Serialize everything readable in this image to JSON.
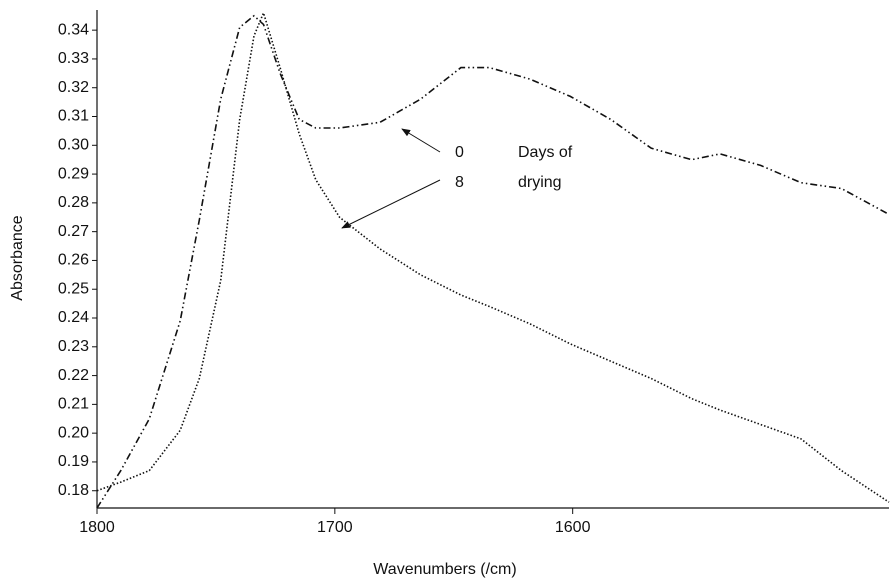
{
  "chart_data": {
    "type": "line",
    "xlabel": "Wavenumbers (/cm)",
    "ylabel": "Absorbance",
    "x": [
      1800,
      1790,
      1778,
      1765,
      1757,
      1748,
      1740,
      1734,
      1730,
      1723,
      1715,
      1708,
      1698,
      1681,
      1664,
      1647,
      1635,
      1618,
      1601,
      1584,
      1567,
      1550,
      1538,
      1521,
      1504,
      1487,
      1467
    ],
    "series": [
      {
        "color": "#111111",
        "linestyle": "dashdot",
        "values": [
          0.174,
          0.187,
          0.205,
          0.239,
          0.274,
          0.316,
          0.341,
          0.345,
          0.342,
          0.325,
          0.309,
          0.306,
          0.306,
          0.308,
          0.316,
          0.327,
          0.327,
          0.323,
          0.317,
          0.309,
          0.299,
          0.295,
          0.297,
          0.293,
          0.287,
          0.285,
          0.276
        ]
      },
      {
        "color": "#111111",
        "linestyle": "dotted",
        "values": [
          0.18,
          0.183,
          0.187,
          0.201,
          0.219,
          0.253,
          0.309,
          0.338,
          0.346,
          0.327,
          0.304,
          0.288,
          0.275,
          0.264,
          0.255,
          0.248,
          0.244,
          0.238,
          0.231,
          0.225,
          0.219,
          0.212,
          0.208,
          0.203,
          0.198,
          0.187,
          0.176
        ]
      }
    ],
    "annotations": [
      "0",
      "Days of",
      "8",
      "drying"
    ],
    "xlim": [
      1800,
      1467
    ],
    "xticks": [
      1800,
      1700,
      1600
    ],
    "ylim": [
      0.174,
      0.347
    ],
    "yticks": [
      0.18,
      0.19,
      {
        "value": 0.2,
        "label": "0.20"
      },
      0.21,
      0.22,
      0.23,
      0.24,
      0.25,
      0.26,
      0.27,
      0.28,
      0.29,
      {
        "value": 0.3,
        "label": "0.30"
      },
      0.31,
      0.32,
      0.33,
      0.34
    ],
    "grid": false
  }
}
